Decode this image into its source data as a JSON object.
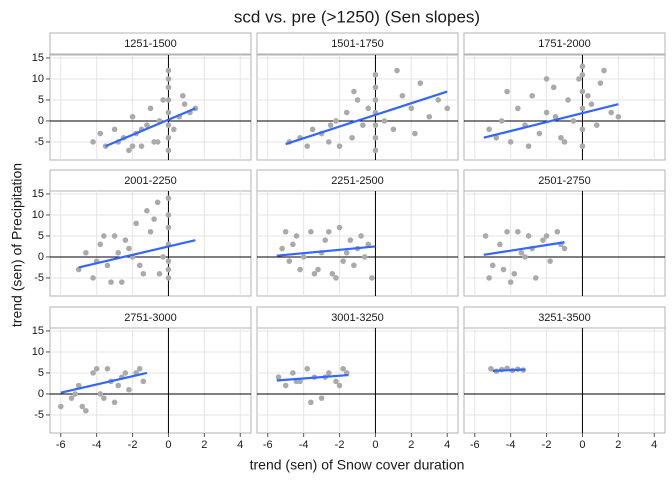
{
  "chart_data": {
    "type": "scatter",
    "title": "scd vs. pre (>1250) (Sen slopes)",
    "x_label": "trend (sen) of Snow cover duration",
    "y_label": "trend (sen) of Precipitation",
    "xlim": [
      -6.6,
      4.6
    ],
    "ylim": [
      -9.3,
      15.7
    ],
    "xticks": [
      -6,
      -4,
      -2,
      0,
      2,
      4
    ],
    "yticks": [
      -5,
      0,
      5,
      10,
      15
    ],
    "grid": true,
    "hline": 0,
    "vline": 0,
    "point_color": "#aaaaaa",
    "line_color": "#3366ff",
    "panels": [
      {
        "title": "1251-1500",
        "x": [
          -4.2,
          -3.8,
          -3.5,
          -3,
          -2.8,
          -2.5,
          -2.2,
          -2,
          -1.8,
          -1.5,
          -1.2,
          -1,
          -0.8,
          -0.5,
          -0.3,
          0,
          0,
          0,
          0,
          0,
          0,
          0,
          0,
          0.3,
          0.6,
          0.9,
          1.2,
          1.5,
          -1.5,
          -2,
          -0.6,
          0.8
        ],
        "y": [
          -5,
          -3,
          -6,
          -2,
          -5,
          -4,
          -7,
          1,
          -3,
          -6,
          -1,
          3,
          -5,
          0,
          5,
          -7,
          -4,
          -1,
          2,
          5,
          8,
          10,
          12,
          -2,
          1,
          4,
          2,
          3,
          -2,
          -6,
          -5,
          6
        ],
        "fit_x": [
          -3.5,
          1.5
        ],
        "fit_y": [
          -6,
          3
        ]
      },
      {
        "title": "1501-1750",
        "x": [
          -4.8,
          -4.2,
          -3.8,
          -3.5,
          -3,
          -2.6,
          -2.2,
          -2,
          -1.6,
          -1.3,
          -1,
          -0.7,
          -0.4,
          0,
          0,
          0,
          0,
          0,
          0,
          0,
          0.5,
          1,
          1.5,
          2,
          2.5,
          3,
          3.5,
          4,
          -1.2,
          -2.5,
          1.2,
          2.2
        ],
        "y": [
          -5,
          -4,
          -6,
          -2,
          -3,
          -5,
          0,
          -6,
          2,
          -4,
          5,
          -1,
          3,
          -7,
          -4,
          -1,
          2,
          5,
          8,
          11,
          0,
          -2,
          6,
          3,
          9,
          1,
          5,
          3,
          7,
          -1,
          12,
          -3
        ],
        "fit_x": [
          -5,
          4
        ],
        "fit_y": [
          -5.5,
          7
        ]
      },
      {
        "title": "1751-2000",
        "x": [
          -5.2,
          -4.8,
          -4.5,
          -4,
          -3.6,
          -3.2,
          -2.8,
          -2.4,
          -2,
          -1.6,
          -1.2,
          -0.8,
          -0.5,
          -0.2,
          0,
          0,
          0,
          0,
          0,
          0,
          0.3,
          0.8,
          1.2,
          1.6,
          2,
          -3,
          -2,
          -1,
          0.5,
          -4.2,
          -1.5,
          1
        ],
        "y": [
          -2,
          -4,
          0,
          -5,
          3,
          -1,
          6,
          -3,
          2,
          8,
          -4,
          5,
          0,
          10,
          -6,
          -2,
          3,
          7,
          11,
          13,
          6,
          -1,
          12,
          2,
          1,
          -6,
          10,
          -5,
          4,
          7,
          1,
          9
        ],
        "fit_x": [
          -5.5,
          2
        ],
        "fit_y": [
          -4,
          4
        ]
      },
      {
        "title": "2001-2250",
        "x": [
          -5,
          -4.6,
          -4.2,
          -3.8,
          -3.4,
          -3,
          -2.6,
          -2.2,
          -1.8,
          -1.4,
          -1,
          -0.6,
          -0.3,
          0,
          0,
          0,
          0,
          0,
          0,
          0,
          -4,
          -3.2,
          -2.4,
          -1.6,
          -0.8,
          -2,
          -3.6,
          -1.2,
          -0.5,
          -2.8
        ],
        "y": [
          -3,
          1,
          -5,
          3,
          -2,
          5,
          -6,
          2,
          8,
          -4,
          6,
          13,
          0,
          -5,
          -1,
          3,
          7,
          10,
          14,
          -3,
          -1,
          -6,
          4,
          -2,
          9,
          0,
          5,
          11,
          -4,
          1
        ],
        "fit_x": [
          -5,
          1.5
        ],
        "fit_y": [
          -2.5,
          4
        ]
      },
      {
        "title": "2251-2500",
        "x": [
          -5.2,
          -4.8,
          -4.4,
          -4,
          -3.6,
          -3.2,
          -2.8,
          -2.4,
          -2,
          -1.6,
          -1.2,
          -0.8,
          -0.4,
          -0.2,
          -5,
          -4.2,
          -3.4,
          -2.6,
          -1.8,
          -1,
          -3,
          -2.2,
          -1.4,
          -0.6,
          -4.6
        ],
        "y": [
          2,
          -1,
          5,
          0,
          6,
          -3,
          4,
          -4,
          7,
          1,
          -2,
          5,
          3,
          -5,
          6,
          -3,
          -4,
          6,
          -1,
          2,
          1,
          -5,
          4,
          0,
          3
        ],
        "fit_x": [
          -5.5,
          0
        ],
        "fit_y": [
          0.3,
          2.5
        ]
      },
      {
        "title": "2501-2750",
        "x": [
          -5.4,
          -5,
          -4.6,
          -4.2,
          -3.8,
          -3.4,
          -3,
          -2.6,
          -2.2,
          -1.8,
          -1.4,
          -1,
          -5.2,
          -4.4,
          -3.6,
          -2.8,
          -2,
          -1.2,
          -4,
          -3.2
        ],
        "y": [
          5,
          -2,
          3,
          6,
          -4,
          1,
          5,
          -5,
          4,
          -1,
          6,
          2,
          -5,
          -3,
          6,
          2,
          5,
          3,
          -6,
          0
        ],
        "fit_x": [
          -5.5,
          -1
        ],
        "fit_y": [
          0.5,
          3.5
        ]
      },
      {
        "title": "2751-3000",
        "x": [
          -6,
          -5.4,
          -5,
          -4.6,
          -4.2,
          -3.8,
          -3.4,
          -3,
          -2.6,
          -2.2,
          -1.8,
          -1.4,
          -4.8,
          -4,
          -3.2,
          -2.4,
          -1.6,
          -5.2,
          -3.6,
          -2.8
        ],
        "y": [
          -3,
          -1,
          2,
          -4,
          5,
          0,
          6,
          -2,
          4,
          1,
          5,
          3,
          -3,
          6,
          3,
          5,
          6,
          0,
          -1,
          2
        ],
        "fit_x": [
          -6,
          -1.2
        ],
        "fit_y": [
          0.3,
          5
        ]
      },
      {
        "title": "3001-3250",
        "x": [
          -5.4,
          -5,
          -4.6,
          -4.2,
          -3.8,
          -3.4,
          -3,
          -2.6,
          -2.2,
          -1.8,
          -1.6,
          -4.4,
          -3.6,
          -2.8,
          -2
        ],
        "y": [
          4,
          2,
          5,
          3,
          6,
          4,
          -1,
          5,
          3,
          6,
          5,
          3,
          -2,
          4,
          2
        ],
        "fit_x": [
          -5.5,
          -1.5
        ],
        "fit_y": [
          3.2,
          4.5
        ]
      },
      {
        "title": "3251-3500",
        "x": [
          -5.1,
          -4.8,
          -4.5,
          -4.2,
          -3.9,
          -3.6,
          -3.3
        ],
        "y": [
          6,
          5.4,
          5.8,
          6.1,
          5.6,
          5.9,
          5.7
        ],
        "fit_x": [
          -5,
          -3.2
        ],
        "fit_y": [
          5.5,
          5.8
        ]
      }
    ]
  }
}
